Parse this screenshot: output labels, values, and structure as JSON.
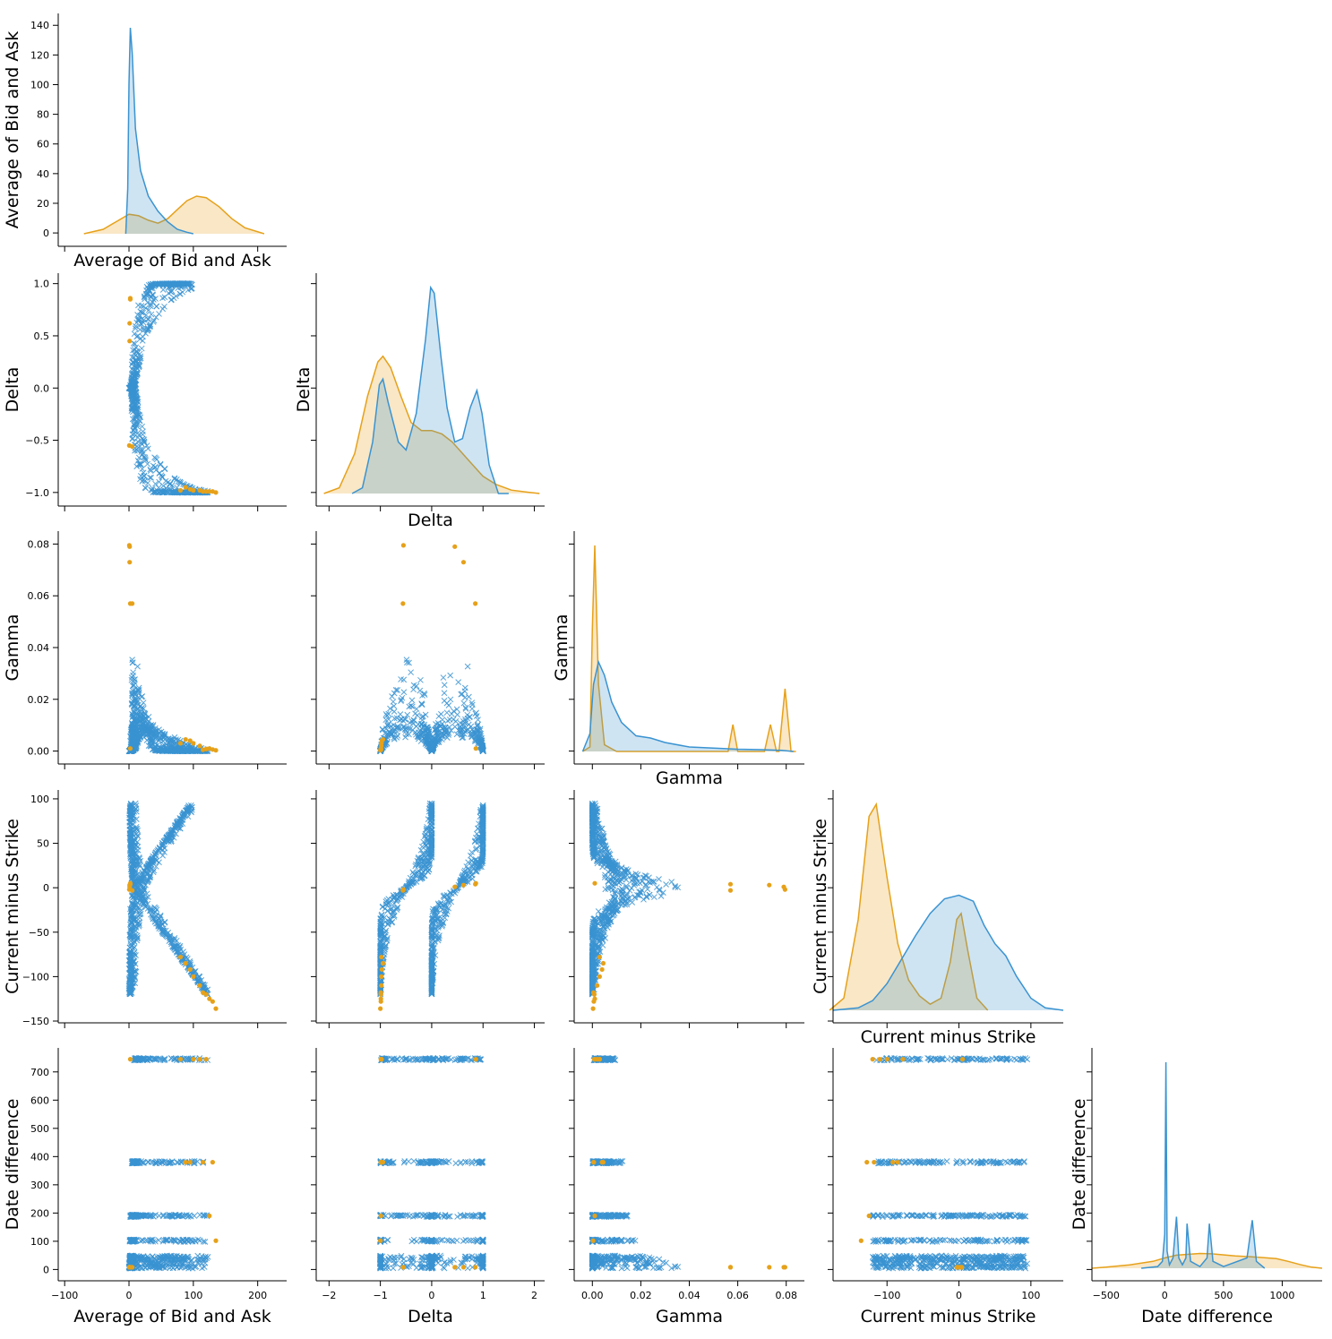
{
  "chart_data": {
    "type": "scatter",
    "title": "",
    "variables": [
      "Average of Bid and Ask",
      "Delta",
      "Gamma",
      "Current minus Strike",
      "Date difference"
    ],
    "legend": "none",
    "grid": false,
    "colors": {
      "blue": "#3a93d1",
      "orange": "#e6a11a"
    },
    "axes": [
      {
        "name": "Average of Bid and Ask",
        "range": [
          -110,
          245
        ],
        "ticks": [
          -100,
          0,
          100,
          200
        ]
      },
      {
        "name": "Delta",
        "range": [
          -2.25,
          2.2
        ],
        "ticks": [
          -2,
          -1,
          0,
          1,
          2
        ]
      },
      {
        "name": "Gamma",
        "range": [
          -0.0075,
          0.0875
        ],
        "ticks": [
          0.0,
          0.02,
          0.04,
          0.06,
          0.08
        ],
        "tick_labels": [
          "0.00",
          "0.02",
          "0.04",
          "0.06",
          "0.08"
        ]
      },
      {
        "name": "Current minus Strike",
        "range": [
          -175,
          145
        ],
        "ticks": [
          -100,
          0,
          100
        ]
      },
      {
        "name": "Date difference",
        "range": [
          -620,
          1340
        ],
        "ticks": [
          -500,
          0,
          500,
          1000
        ]
      }
    ],
    "y_axes": [
      {
        "name": "Average of Bid and Ask",
        "range": [
          -9,
          148
        ],
        "ticks": [
          0,
          20,
          40,
          60,
          80,
          100,
          120,
          140
        ]
      },
      {
        "name": "Delta",
        "range": [
          -1.13,
          1.1
        ],
        "ticks": [
          -1.0,
          -0.5,
          0.0,
          0.5,
          1.0
        ],
        "tick_labels": [
          "−1.0",
          "−0.5",
          "0.0",
          "0.5",
          "1.0"
        ]
      },
      {
        "name": "Gamma",
        "range": [
          -0.005,
          0.085
        ],
        "ticks": [
          0.0,
          0.02,
          0.04,
          0.06,
          0.08
        ],
        "tick_labels": [
          "0.00",
          "0.02",
          "0.04",
          "0.06",
          "0.08"
        ]
      },
      {
        "name": "Current minus Strike",
        "range": [
          -152,
          110
        ],
        "ticks": [
          -150,
          -100,
          -50,
          0,
          50,
          100
        ],
        "tick_labels": [
          "−150",
          "−100",
          "−50",
          "0",
          "50",
          "100"
        ]
      },
      {
        "name": "Date difference",
        "range": [
          -40,
          785
        ],
        "ticks": [
          0,
          100,
          200,
          300,
          400,
          500,
          600,
          700
        ]
      }
    ],
    "x_tick_labels": {
      "0": [
        "−100",
        "0",
        "100",
        "200"
      ],
      "1": [
        "−2",
        "−1",
        "0",
        "1",
        "2"
      ],
      "3": [
        "−100",
        "0",
        "100"
      ],
      "4": [
        "−500",
        "0",
        "500",
        "1000"
      ]
    },
    "diagonal_kde": [
      {
        "variable": "Average of Bid and Ask",
        "blue": [
          [
            -5,
            0
          ],
          [
            -2,
            30
          ],
          [
            0,
            100
          ],
          [
            2,
            137
          ],
          [
            5,
            120
          ],
          [
            10,
            70
          ],
          [
            18,
            42
          ],
          [
            30,
            25
          ],
          [
            45,
            15
          ],
          [
            60,
            8
          ],
          [
            75,
            3
          ],
          [
            90,
            1
          ],
          [
            100,
            0
          ]
        ],
        "orange": [
          [
            -70,
            0
          ],
          [
            -40,
            3
          ],
          [
            -20,
            8
          ],
          [
            0,
            13
          ],
          [
            15,
            12
          ],
          [
            30,
            9
          ],
          [
            45,
            7
          ],
          [
            60,
            10
          ],
          [
            75,
            16
          ],
          [
            90,
            22
          ],
          [
            105,
            25
          ],
          [
            120,
            24
          ],
          [
            140,
            18
          ],
          [
            160,
            10
          ],
          [
            180,
            4
          ],
          [
            210,
            0
          ]
        ]
      },
      {
        "variable": "Delta",
        "blue": [
          [
            -1.55,
            0
          ],
          [
            -1.35,
            0.05
          ],
          [
            -1.15,
            0.45
          ],
          [
            -1.02,
            0.95
          ],
          [
            -0.95,
            1.0
          ],
          [
            -0.85,
            0.8
          ],
          [
            -0.65,
            0.45
          ],
          [
            -0.5,
            0.38
          ],
          [
            -0.3,
            0.7
          ],
          [
            -0.12,
            1.35
          ],
          [
            -0.02,
            1.8
          ],
          [
            0.05,
            1.75
          ],
          [
            0.18,
            1.2
          ],
          [
            0.3,
            0.75
          ],
          [
            0.45,
            0.45
          ],
          [
            0.6,
            0.48
          ],
          [
            0.75,
            0.75
          ],
          [
            0.88,
            0.9
          ],
          [
            0.98,
            0.7
          ],
          [
            1.12,
            0.25
          ],
          [
            1.3,
            0
          ],
          [
            1.5,
            0
          ]
        ],
        "orange": [
          [
            -2.1,
            0
          ],
          [
            -1.8,
            0.05
          ],
          [
            -1.5,
            0.35
          ],
          [
            -1.25,
            0.85
          ],
          [
            -1.05,
            1.15
          ],
          [
            -0.95,
            1.2
          ],
          [
            -0.8,
            1.1
          ],
          [
            -0.6,
            0.85
          ],
          [
            -0.4,
            0.62
          ],
          [
            -0.2,
            0.55
          ],
          [
            0,
            0.55
          ],
          [
            0.2,
            0.52
          ],
          [
            0.4,
            0.45
          ],
          [
            0.6,
            0.35
          ],
          [
            0.8,
            0.25
          ],
          [
            1.0,
            0.15
          ],
          [
            1.25,
            0.08
          ],
          [
            1.55,
            0.03
          ],
          [
            1.9,
            0.01
          ],
          [
            2.1,
            0
          ]
        ]
      },
      {
        "variable": "Gamma",
        "blue": [
          [
            -0.004,
            0
          ],
          [
            -0.001,
            8
          ],
          [
            0.0005,
            30
          ],
          [
            0.0025,
            40
          ],
          [
            0.005,
            34
          ],
          [
            0.008,
            22
          ],
          [
            0.012,
            13
          ],
          [
            0.018,
            7
          ],
          [
            0.024,
            6
          ],
          [
            0.03,
            4
          ],
          [
            0.04,
            2
          ],
          [
            0.05,
            1.5
          ],
          [
            0.06,
            1
          ],
          [
            0.07,
            0.8
          ],
          [
            0.078,
            0.5
          ],
          [
            0.083,
            0
          ]
        ],
        "orange": [
          [
            -0.004,
            0
          ],
          [
            -0.001,
            2
          ],
          [
            0.0,
            55
          ],
          [
            0.001,
            92
          ],
          [
            0.0025,
            30
          ],
          [
            0.005,
            3
          ],
          [
            0.01,
            0
          ],
          [
            0.05,
            0
          ],
          [
            0.056,
            0
          ],
          [
            0.058,
            12
          ],
          [
            0.06,
            0
          ],
          [
            0.071,
            0
          ],
          [
            0.0735,
            12
          ],
          [
            0.076,
            0
          ],
          [
            0.077,
            0
          ],
          [
            0.0795,
            28
          ],
          [
            0.082,
            0
          ],
          [
            0.084,
            0
          ]
        ]
      },
      {
        "variable": "Current minus Strike",
        "blue": [
          [
            -175,
            0
          ],
          [
            -140,
            0.02
          ],
          [
            -120,
            0.08
          ],
          [
            -100,
            0.22
          ],
          [
            -80,
            0.42
          ],
          [
            -60,
            0.62
          ],
          [
            -40,
            0.8
          ],
          [
            -20,
            0.92
          ],
          [
            0,
            0.95
          ],
          [
            20,
            0.9
          ],
          [
            35,
            0.7
          ],
          [
            50,
            0.55
          ],
          [
            65,
            0.45
          ],
          [
            80,
            0.28
          ],
          [
            100,
            0.1
          ],
          [
            120,
            0.02
          ],
          [
            145,
            0
          ]
        ],
        "orange": [
          [
            -180,
            0
          ],
          [
            -160,
            0.1
          ],
          [
            -140,
            0.75
          ],
          [
            -125,
            1.6
          ],
          [
            -115,
            1.7
          ],
          [
            -100,
            1.1
          ],
          [
            -85,
            0.55
          ],
          [
            -70,
            0.25
          ],
          [
            -55,
            0.12
          ],
          [
            -40,
            0.05
          ],
          [
            -25,
            0.1
          ],
          [
            -12,
            0.4
          ],
          [
            -3,
            0.75
          ],
          [
            3,
            0.8
          ],
          [
            12,
            0.5
          ],
          [
            25,
            0.1
          ],
          [
            40,
            0
          ]
        ]
      },
      {
        "variable": "Date difference",
        "blue": [
          [
            -200,
            0
          ],
          [
            -60,
            0.5
          ],
          [
            -20,
            2
          ],
          [
            0,
            10
          ],
          [
            10,
            60
          ],
          [
            20,
            5
          ],
          [
            40,
            1
          ],
          [
            70,
            3
          ],
          [
            100,
            15
          ],
          [
            120,
            3
          ],
          [
            150,
            1
          ],
          [
            180,
            3
          ],
          [
            190,
            13
          ],
          [
            220,
            2
          ],
          [
            300,
            0.5
          ],
          [
            360,
            3
          ],
          [
            380,
            13
          ],
          [
            410,
            2
          ],
          [
            500,
            0.5
          ],
          [
            700,
            3
          ],
          [
            745,
            14
          ],
          [
            780,
            2
          ],
          [
            850,
            0
          ]
        ],
        "orange": [
          [
            -620,
            0
          ],
          [
            -500,
            0.3
          ],
          [
            -300,
            1
          ],
          [
            -100,
            2
          ],
          [
            0,
            3
          ],
          [
            100,
            3.8
          ],
          [
            300,
            4.3
          ],
          [
            400,
            4.2
          ],
          [
            600,
            3.6
          ],
          [
            800,
            3.2
          ],
          [
            950,
            2.8
          ],
          [
            1050,
            2.0
          ],
          [
            1150,
            1.1
          ],
          [
            1250,
            0.3
          ],
          [
            1340,
            0
          ]
        ]
      }
    ]
  }
}
